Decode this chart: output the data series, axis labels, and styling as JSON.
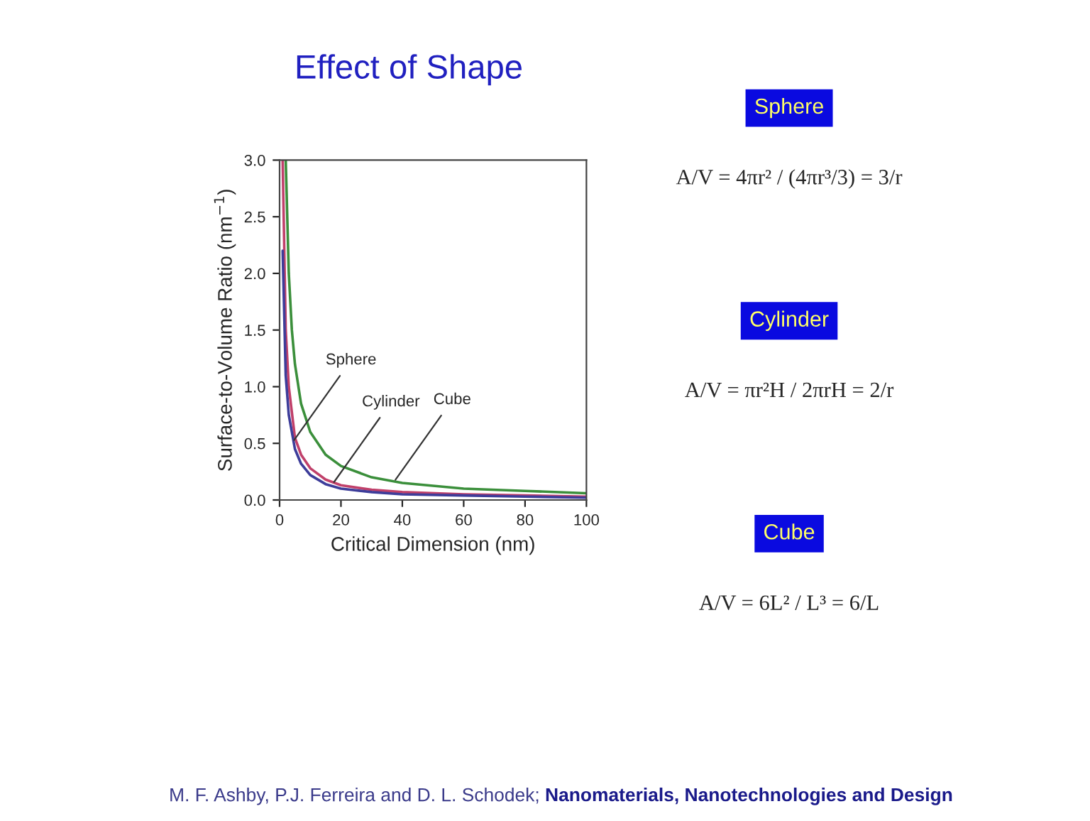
{
  "chart_data": [
    {
      "type": "line",
      "title": "Effect of Shape",
      "xlabel": "Critical Dimension (nm)",
      "ylabel": "Surface-to-Volume Ratio (nm$^{−1}$)",
      "xlim": [
        0,
        100
      ],
      "ylim": [
        0,
        3.0
      ],
      "xticks": [
        0,
        20,
        40,
        60,
        80,
        100
      ],
      "yticks": [
        {
          "value": 0,
          "label": "0.0"
        },
        0.5,
        {
          "value": 1,
          "label": "1.0"
        },
        1.5,
        {
          "value": 2,
          "label": "2.0"
        },
        2.5,
        {
          "value": 3,
          "label": "3.0"
        }
      ],
      "grid": false,
      "legend": false,
      "marker": "none",
      "line_style": "solid",
      "series": [
        {
          "color": "#3b8f3b",
          "x": [
            2,
            3,
            4,
            5,
            7,
            10,
            15,
            20,
            30,
            40,
            60,
            80,
            100
          ],
          "values": [
            3.0,
            2.0,
            1.5,
            1.2,
            0.85,
            0.6,
            0.4,
            0.3,
            0.2,
            0.15,
            0.1,
            0.08,
            0.06
          ]
        },
        {
          "color": "#c0406a",
          "x": [
            1,
            2,
            3,
            5,
            7,
            10,
            15,
            20,
            30,
            40,
            60,
            80,
            100
          ],
          "values": [
            3.0,
            1.5,
            1.0,
            0.55,
            0.4,
            0.28,
            0.18,
            0.13,
            0.09,
            0.07,
            0.05,
            0.04,
            0.03
          ]
        },
        {
          "color": "#3d3d9a",
          "x": [
            1,
            2,
            3,
            5,
            7,
            10,
            15,
            20,
            30,
            40,
            60,
            80,
            100
          ],
          "values": [
            2.2,
            1.1,
            0.75,
            0.45,
            0.32,
            0.22,
            0.14,
            0.1,
            0.07,
            0.05,
            0.04,
            0.03,
            0.02
          ]
        }
      ],
      "annotations": [
        {
          "text": "Sphere",
          "x": 4,
          "y": 0.5
        },
        {
          "text": "Cylinder",
          "x": 17,
          "y": 0.13
        },
        {
          "text": "Cube",
          "x": 37,
          "y": 0.15
        },
        "M. F. Ashby, P.J. Ferreira and D. L. Schodek;",
        "Nanomaterials, Nanotechnologies and Design"
      ]
    },
    {
      "type": "other",
      "annotations": [
        "Sphere",
        "A/V = 4πr² / (4πr³/3) = 3/r",
        "Cylinder",
        "A/V = πr²H / 2πrH = 2/r",
        "Cube",
        "A/V = 6L² / L³ = 6/L"
      ]
    }
  ]
}
